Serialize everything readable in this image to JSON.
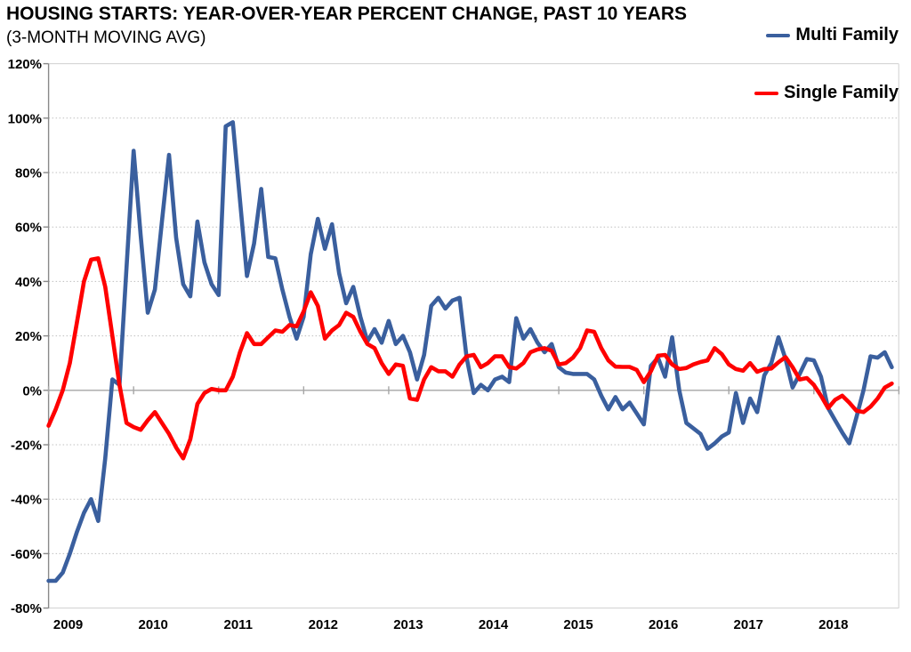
{
  "title": "HOUSING STARTS: YEAR-OVER-YEAR PERCENT CHANGE, PAST 10 YEARS",
  "subtitle": "(3-MONTH MOVING AVG)",
  "legend": {
    "items": [
      {
        "label": "Multi Family",
        "color": "#3A5F9E"
      },
      {
        "label": "Single Family",
        "color": "#FF0000"
      }
    ]
  },
  "chart_data": {
    "type": "line",
    "title": "HOUSING STARTS: YEAR-OVER-YEAR PERCENT CHANGE, PAST 10 YEARS",
    "subtitle": "(3-MONTH MOVING AVG)",
    "x_unit": "month",
    "x_start": "2009-01",
    "x_end": "2018-12",
    "categories_years": [
      "2009",
      "2010",
      "2011",
      "2012",
      "2013",
      "2014",
      "2015",
      "2016",
      "2017",
      "2018"
    ],
    "y_tick_labels": [
      "120%",
      "100%",
      "80%",
      "60%",
      "40%",
      "20%",
      "0%",
      "-20%",
      "-40%",
      "-60%",
      "-80%"
    ],
    "y_tick_values": [
      120,
      100,
      80,
      60,
      40,
      20,
      0,
      -20,
      -40,
      -60,
      -80
    ],
    "ylim": [
      -80,
      120
    ],
    "grid": "horizontal-dotted",
    "zero_axis": true,
    "legend_position": "top-right",
    "series": [
      {
        "name": "Multi Family",
        "color": "#3A5F9E",
        "values": [
          -70,
          -70,
          -67,
          -60,
          -52,
          -45,
          -40,
          -48,
          -25,
          4,
          2,
          45,
          88,
          57,
          28.5,
          37,
          62,
          86.5,
          56,
          39,
          34.5,
          62,
          47,
          39,
          35,
          97,
          98.5,
          70,
          42,
          54,
          74,
          49,
          48.5,
          37,
          27,
          19,
          27,
          50,
          63,
          52,
          61,
          43,
          32,
          38,
          27,
          18,
          22.5,
          17.5,
          25.5,
          17,
          20,
          14,
          4,
          13,
          31,
          34,
          30,
          33,
          34,
          12,
          -1,
          2,
          0,
          4,
          5,
          3,
          26.5,
          19,
          22.5,
          17.5,
          14,
          17,
          8.5,
          6.5,
          6,
          6,
          6,
          4,
          -2,
          -7,
          -2.5,
          -7,
          -4.5,
          -8.5,
          -12.5,
          9,
          12,
          5,
          19.5,
          0,
          -12,
          -14,
          -16,
          -21.5,
          -19.5,
          -17,
          -15.5,
          -1,
          -12,
          -3,
          -8,
          5.5,
          10,
          19.5,
          11.5,
          1,
          6,
          11.5,
          11,
          5,
          -6.5,
          -11,
          -15.5,
          -19.5,
          -10,
          0,
          12.5,
          12,
          14,
          8.5
        ]
      },
      {
        "name": "Single Family",
        "color": "#FF0000",
        "values": [
          -13,
          -7,
          0,
          10,
          25,
          40,
          48,
          48.5,
          38,
          20,
          2,
          -12,
          -13.5,
          -14.5,
          -11,
          -8,
          -12,
          -16,
          -21,
          -25,
          -18,
          -5,
          -1,
          0.5,
          0,
          0,
          5,
          14,
          21,
          17,
          17,
          19.5,
          22,
          21.5,
          24,
          23.5,
          29,
          36,
          31,
          19,
          22,
          24,
          28.5,
          27,
          21.5,
          17,
          15.5,
          10,
          6,
          9.5,
          9,
          -3,
          -3.5,
          4,
          8.5,
          7,
          7,
          5,
          9.5,
          12.5,
          13,
          8.5,
          10,
          12.5,
          12.5,
          8.5,
          8,
          10,
          14,
          15,
          15.5,
          14.5,
          9.5,
          10,
          12,
          15.5,
          22,
          21.5,
          15.5,
          11,
          8.7,
          8.6,
          8.6,
          7.5,
          3,
          7,
          12.7,
          13,
          9.5,
          7.8,
          8.2,
          9.5,
          10.4,
          11,
          15.5,
          13.3,
          9.5,
          7.8,
          7.2,
          10,
          6.8,
          7.8,
          8,
          10.3,
          12.2,
          8.5,
          4,
          4.5,
          2,
          -2,
          -6.5,
          -3.5,
          -2,
          -4.5,
          -7.5,
          -8,
          -6,
          -3,
          1,
          2.5
        ]
      }
    ]
  },
  "colors": {
    "background": "#FFFFFF",
    "text": "#000000",
    "plot_border": "#D0D0D0",
    "gridline_dotted": "#BFBFBF",
    "zero_line": "#A6A6A6",
    "axis_spine": "#898989"
  }
}
